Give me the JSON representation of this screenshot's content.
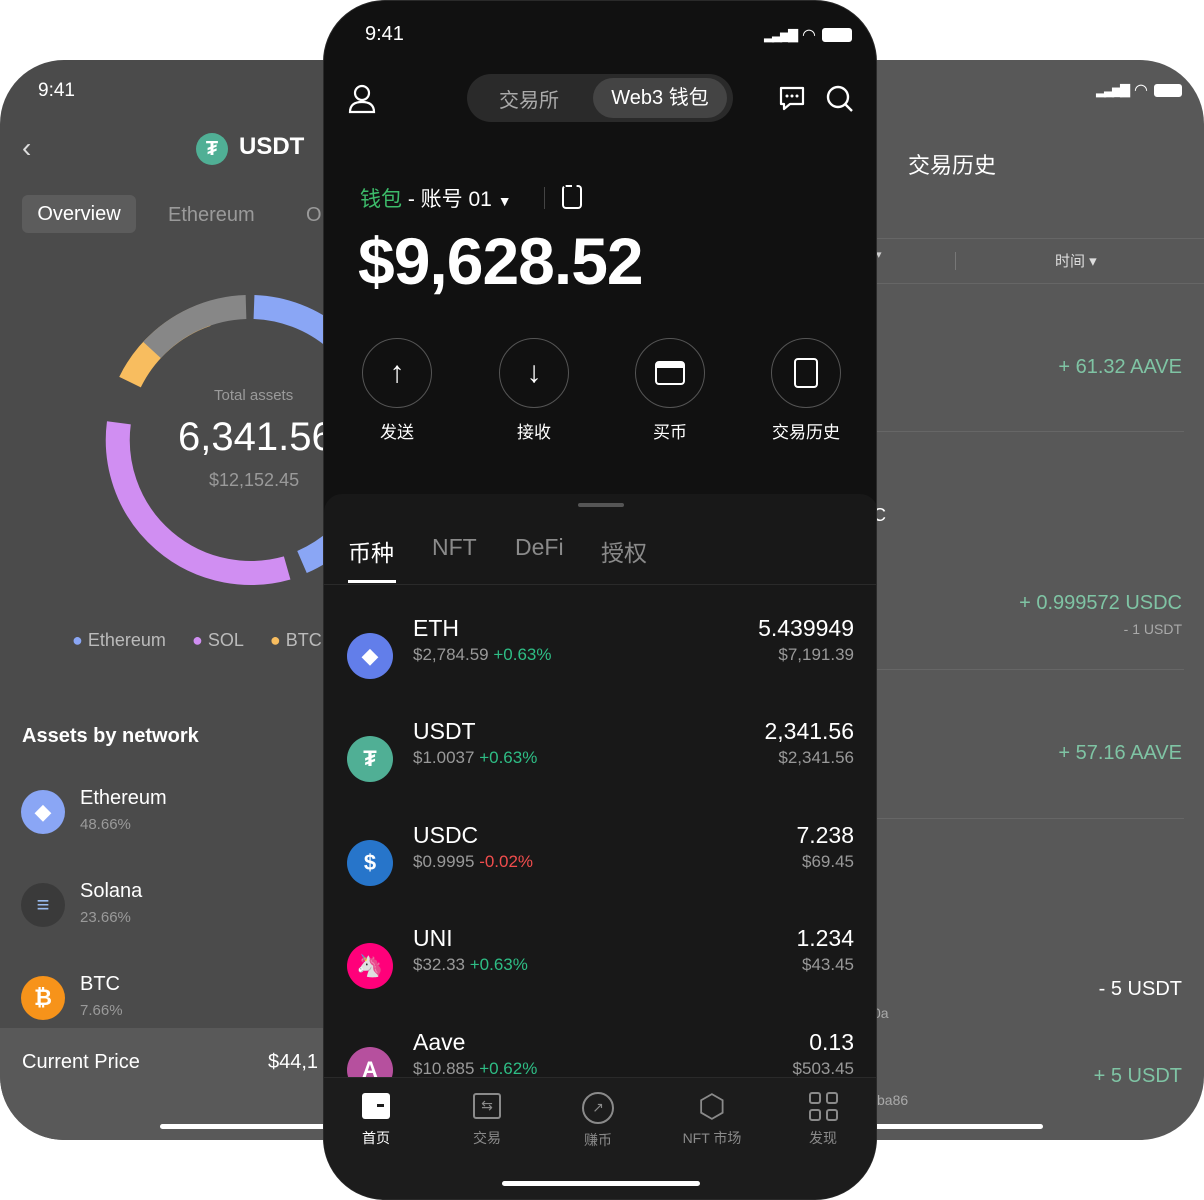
{
  "left_phone": {
    "time": "9:41",
    "title": "USDT",
    "tabs": [
      "Overview",
      "Ethereum",
      "O"
    ],
    "total_label": "Total assets",
    "total_value": "6,341.56",
    "total_usd": "$12,152.45",
    "legend": [
      {
        "name": "Ethereum",
        "color": "#8aa6f5"
      },
      {
        "name": "SOL",
        "color": "#d08ef2"
      },
      {
        "name": "BTC",
        "color": "#f8bd5f"
      }
    ],
    "section_title": "Assets by network",
    "networks": [
      {
        "name": "Ethereum",
        "pct": "48.66%"
      },
      {
        "name": "Solana",
        "pct": "23.66%"
      },
      {
        "name": "BTC",
        "pct": "7.66%"
      }
    ],
    "current_price_label": "Current Price",
    "current_price_value": "$44,1"
  },
  "center_phone": {
    "time": "9:41",
    "segment": {
      "options": [
        "交易所",
        "Web3 钱包"
      ],
      "selected": "Web3 钱包"
    },
    "wallet_label": "钱包",
    "account_label": "- 账号 01",
    "balance": "$9,628.52",
    "actions": [
      {
        "label": "发送",
        "icon": "arrow-up-icon"
      },
      {
        "label": "接收",
        "icon": "arrow-down-icon"
      },
      {
        "label": "买币",
        "icon": "card-icon"
      },
      {
        "label": "交易历史",
        "icon": "document-icon"
      }
    ],
    "tabs": [
      "币种",
      "NFT",
      "DeFi",
      "授权"
    ],
    "active_tab": "币种",
    "tokens": [
      {
        "symbol": "ETH",
        "price": "$2,784.59",
        "change": "+0.63%",
        "amount": "5.439949",
        "value": "$7,191.39",
        "color": "#627eea"
      },
      {
        "symbol": "USDT",
        "price": "$1.0037",
        "change": "+0.63%",
        "amount": "2,341.56",
        "value": "$2,341.56",
        "color": "#50af95"
      },
      {
        "symbol": "USDC",
        "price": "$0.9995",
        "change": "-0.02%",
        "amount": "7.238",
        "value": "$69.45",
        "color": "#2775ca"
      },
      {
        "symbol": "UNI",
        "price": "$32.33",
        "change": "+0.63%",
        "amount": "1.234",
        "value": "$43.45",
        "color": "#ff007a"
      },
      {
        "symbol": "Aave",
        "price": "$10.885",
        "change": "+0.62%",
        "amount": "0.13",
        "value": "$503.45",
        "color": "#b6509e"
      }
    ],
    "nav": [
      {
        "label": "首页",
        "icon": "wallet-icon",
        "active": true
      },
      {
        "label": "交易",
        "icon": "swap-icon"
      },
      {
        "label": "赚币",
        "icon": "earn-icon"
      },
      {
        "label": "NFT 市场",
        "icon": "nft-icon"
      },
      {
        "label": "发现",
        "icon": "grid-icon"
      }
    ]
  },
  "right_phone": {
    "title": "交易历史",
    "filter": "时间",
    "transactions": [
      {
        "amount": "+ 61.32 AAVE"
      },
      {
        "amount": "+ 0.999572 USDC",
        "sub": "- 1 USDT"
      },
      {
        "amount": "+ 57.16 AAVE"
      },
      {
        "amount": "- 5 USDT"
      },
      {
        "amount": "+ 5 USDT"
      }
    ],
    "fragments": [
      "C",
      "0a",
      "ba86"
    ]
  }
}
